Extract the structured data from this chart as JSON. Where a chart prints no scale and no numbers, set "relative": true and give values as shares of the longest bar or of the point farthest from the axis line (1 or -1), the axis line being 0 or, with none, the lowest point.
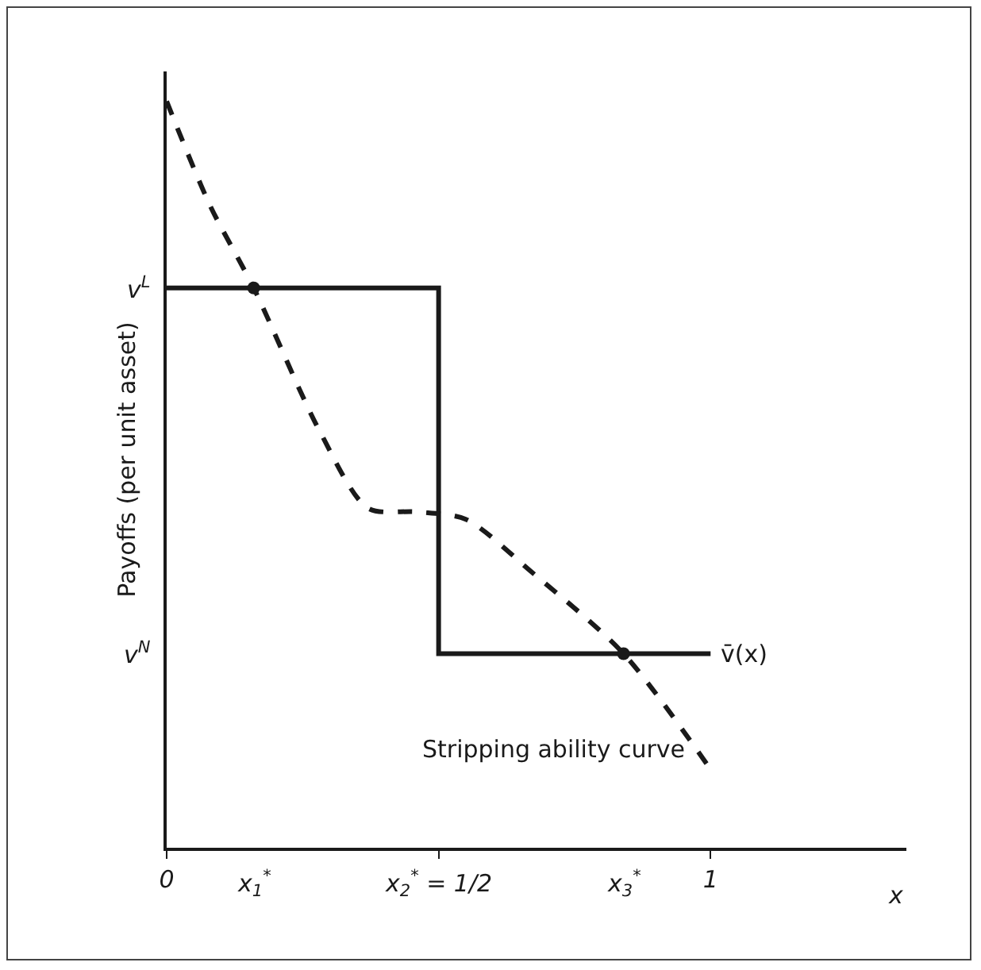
{
  "chart_data": {
    "type": "line",
    "ylabel": "Payoffs (per unit asset)",
    "xlabel": "x",
    "relative": true,
    "xlim": [
      0,
      1.36
    ],
    "xticks": [
      0,
      {
        "value": 0.5,
        "label": null
      },
      1
    ],
    "grid": false,
    "legend": false,
    "annotations": [
      "v$^{L}$",
      "v$^{N}$",
      "x$_{1}$$^{*}$",
      "x$_{2}$$^{*}$ = 1/2",
      "x$_{3}$$^{*}$"
    ],
    "series": [
      {
        "name": "v̄(x)",
        "color": "#1a1a1a",
        "line_style": "solid",
        "marker": "none",
        "x": [
          0,
          0.5,
          0.5,
          1
        ],
        "values": [
          0.75,
          0.75,
          0.26,
          0.26
        ]
      },
      {
        "name": "Stripping ability curve",
        "color": "#1a1a1a",
        "line_style": "dashed",
        "marker": "none",
        "x": [
          0,
          0.08,
          0.16,
          0.28,
          0.37,
          0.46,
          0.55,
          0.67,
          0.84,
          1.0
        ],
        "values": [
          1.0,
          0.86,
          0.75,
          0.56,
          0.455,
          0.45,
          0.44,
          0.37,
          0.26,
          0.105
        ]
      },
      {
        "type": "scatter",
        "color": "#1a1a1a",
        "marker": "circle",
        "x": [
          0.16,
          0.84
        ],
        "values": [
          0.75,
          0.26
        ]
      }
    ]
  }
}
